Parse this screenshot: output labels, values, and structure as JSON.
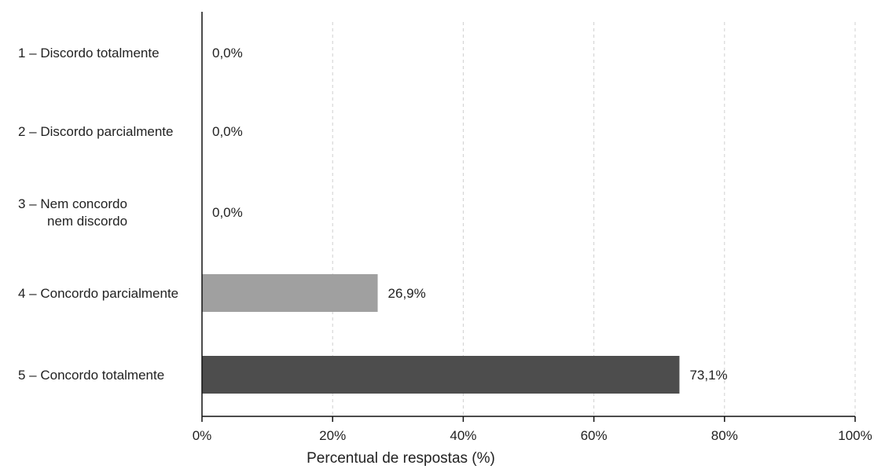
{
  "chart_data": {
    "type": "bar",
    "orientation": "horizontal",
    "categories": [
      [
        "1 – Discordo totalmente"
      ],
      [
        "2 – Discordo parcialmente"
      ],
      [
        "3 – Nem concordo",
        "nem discordo"
      ],
      [
        "4 – Concordo parcialmente"
      ],
      [
        "5 – Concordo totalmente"
      ]
    ],
    "values": [
      0.0,
      0.0,
      0.0,
      26.9,
      73.1
    ],
    "value_labels": [
      "0,0%",
      "0,0%",
      "0,0%",
      "26,9%",
      "73,1%"
    ],
    "bar_colors": [
      "#a0a0a0",
      "#a0a0a0",
      "#a0a0a0",
      "#a0a0a0",
      "#4d4d4d"
    ],
    "xlim": [
      0,
      100
    ],
    "xticks": [
      0,
      20,
      40,
      60,
      80,
      100
    ],
    "xtick_labels": [
      "0%",
      "20%",
      "40%",
      "60%",
      "80%",
      "100%"
    ],
    "xlabel": "Percentual de respostas (%)",
    "grid": "vertical dashed",
    "title": ""
  }
}
